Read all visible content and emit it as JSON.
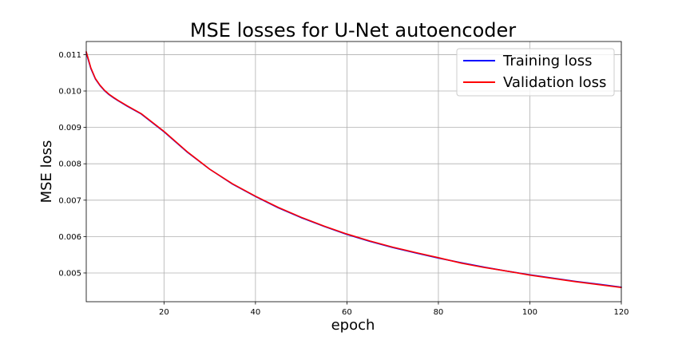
{
  "chart_data": {
    "type": "line",
    "title": "MSE losses for U-Net autoencoder",
    "xlabel": "epoch",
    "ylabel": "MSE loss",
    "xlim": [
      3,
      120
    ],
    "ylim": [
      0.00421,
      0.01136
    ],
    "xticks": [
      20,
      40,
      60,
      80,
      100,
      120
    ],
    "xtick_labels": [
      "20",
      "40",
      "60",
      "80",
      "100",
      "120"
    ],
    "yticks": [
      0.005,
      0.006,
      0.007,
      0.008,
      0.009,
      0.01,
      0.011
    ],
    "ytick_labels": [
      "0.005",
      "0.006",
      "0.007",
      "0.008",
      "0.009",
      "0.010",
      "0.011"
    ],
    "grid": true,
    "legend_position": "top-right",
    "x": [
      3,
      4,
      5,
      6,
      7,
      8,
      9,
      10,
      12,
      15,
      20,
      25,
      30,
      35,
      40,
      45,
      50,
      55,
      60,
      65,
      70,
      75,
      80,
      85,
      90,
      95,
      100,
      105,
      110,
      115,
      120
    ],
    "series": [
      {
        "name": "Training loss",
        "color": "#0000ff",
        "values": [
          0.01105,
          0.01062,
          0.01033,
          0.01015,
          0.01001,
          0.0099,
          0.00981,
          0.00973,
          0.00958,
          0.00937,
          0.00888,
          0.00833,
          0.00785,
          0.00744,
          0.0071,
          0.00679,
          0.00652,
          0.00628,
          0.00606,
          0.00587,
          0.0057,
          0.00555,
          0.00541,
          0.00528,
          0.00516,
          0.00505,
          0.00495,
          0.00486,
          0.00477,
          0.00469,
          0.00461
        ]
      },
      {
        "name": "Validation loss",
        "color": "#ff0000",
        "values": [
          0.01108,
          0.01064,
          0.01034,
          0.01016,
          0.01002,
          0.00991,
          0.00982,
          0.00974,
          0.00959,
          0.00938,
          0.00889,
          0.00834,
          0.00785,
          0.00745,
          0.00711,
          0.0068,
          0.00653,
          0.00629,
          0.00607,
          0.00588,
          0.00571,
          0.00556,
          0.00542,
          0.00527,
          0.00515,
          0.00505,
          0.00494,
          0.00485,
          0.00476,
          0.00468,
          0.0046
        ]
      }
    ]
  }
}
